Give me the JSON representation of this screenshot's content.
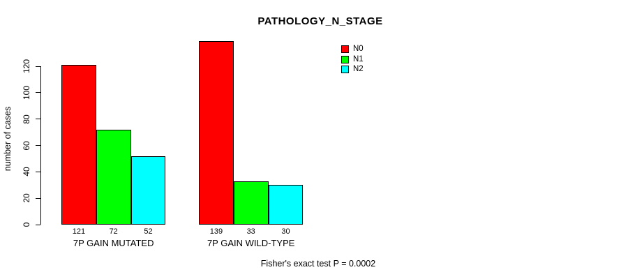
{
  "chart_data": {
    "type": "bar",
    "title": "PATHOLOGY_N_STAGE",
    "ylabel": "number of cases",
    "xlabel": "",
    "categories": [
      "7P GAIN MUTATED",
      "7P GAIN WILD-TYPE"
    ],
    "series": [
      {
        "name": "N0",
        "color": "#ff0000",
        "values": [
          121,
          139
        ]
      },
      {
        "name": "N1",
        "color": "#00ff00",
        "values": [
          72,
          33
        ]
      },
      {
        "name": "N2",
        "color": "#00ffff",
        "values": [
          52,
          30
        ]
      }
    ],
    "show_values_under_bars": true,
    "yticks": [
      0,
      20,
      40,
      60,
      80,
      100,
      120
    ],
    "ylim": [
      0,
      120
    ],
    "grid": false,
    "legend_position": "top-right",
    "annotation": "Fisher's exact test P = 0.0002",
    "bar_border_color": "#000000",
    "text_color": "#000000",
    "background_color": "#ffffff"
  }
}
